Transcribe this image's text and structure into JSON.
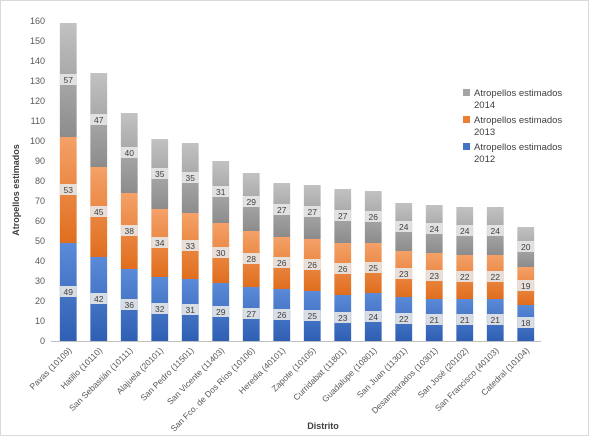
{
  "chart_data": {
    "type": "bar",
    "stacked": true,
    "title": "",
    "xlabel": "Distrito",
    "ylabel": "Atropellos estimados",
    "ylim": [
      0,
      160
    ],
    "yticks": [
      0,
      10,
      20,
      30,
      40,
      50,
      60,
      70,
      80,
      90,
      100,
      110,
      120,
      130,
      140,
      150,
      160
    ],
    "grid": false,
    "legend_position": "right",
    "categories": [
      "Pavas (10109)",
      "Hatillo (10110)",
      "San Sebastián (10111)",
      "Alajuela (20101)",
      "San Pedro (11501)",
      "San Vicente (11403)",
      "San Fco. de Dos Ríos (10106)",
      "Heredia (40101)",
      "Zapote (10105)",
      "Curridabat (11801)",
      "Guadalupe (10801)",
      "San Juan (11301)",
      "Desamparados (10301)",
      "San José (20102)",
      "San Francisco (40103)",
      "Catedral (10104)"
    ],
    "series": [
      {
        "name": "Atropellos estimados 2012",
        "values": [
          49,
          42,
          36,
          32,
          31,
          29,
          27,
          26,
          25,
          23,
          24,
          22,
          21,
          21,
          21,
          18
        ],
        "color": "#4472c4"
      },
      {
        "name": "Atropellos estimados 2013",
        "values": [
          53,
          45,
          38,
          34,
          33,
          30,
          28,
          26,
          26,
          26,
          25,
          23,
          23,
          22,
          22,
          19
        ],
        "color": "#ed7d31"
      },
      {
        "name": "Atropellos estimados 2014",
        "values": [
          57,
          47,
          40,
          35,
          35,
          31,
          29,
          27,
          27,
          27,
          26,
          24,
          24,
          24,
          24,
          20
        ],
        "color": "#a5a5a5"
      }
    ]
  }
}
